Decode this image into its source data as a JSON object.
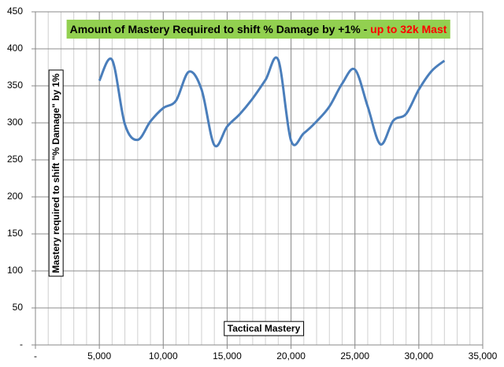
{
  "chart_data": {
    "type": "line",
    "title_parts": [
      "Amount of Mastery Required to shift % Damage by +1% - ",
      "up to 32k Mast"
    ],
    "title_colors": [
      "#000000",
      "#ff0000"
    ],
    "title_background": "#92d050",
    "x_label": "Tactical Mastery",
    "y_label": "Mastery required to shift \"% Damage\" by 1%",
    "x": [
      5000,
      6000,
      7000,
      8000,
      9000,
      10000,
      11000,
      12000,
      13000,
      14000,
      15000,
      16000,
      17000,
      18000,
      19000,
      20000,
      21000,
      22000,
      23000,
      24000,
      25000,
      26000,
      27000,
      28000,
      29000,
      30000,
      31000,
      32000
    ],
    "series": [
      {
        "name": "Mastery required",
        "color": "#4a7ebb",
        "values": [
          357,
          385,
          298,
          277,
          302,
          320,
          330,
          369,
          345,
          270,
          295,
          312,
          333,
          358,
          385,
          276,
          286,
          302,
          322,
          353,
          372,
          322,
          271,
          303,
          312,
          345,
          370,
          384
        ]
      }
    ],
    "xlim": [
      0,
      35000
    ],
    "xticks": [
      {
        "value": 0,
        "label": "-"
      },
      {
        "value": 5000,
        "label": "5,000"
      },
      {
        "value": 10000,
        "label": "10,000"
      },
      {
        "value": 15000,
        "label": "15,000"
      },
      {
        "value": 20000,
        "label": "20,000"
      },
      {
        "value": 25000,
        "label": "25,000"
      },
      {
        "value": 30000,
        "label": "30,000"
      },
      {
        "value": 35000,
        "label": "35,000"
      }
    ],
    "ylim": [
      0,
      450
    ],
    "yticks": [
      {
        "value": 0,
        "label": "-"
      },
      50,
      100,
      150,
      200,
      250,
      300,
      350,
      400,
      450
    ],
    "grid": true,
    "xminor": 1000,
    "smooth": true
  }
}
